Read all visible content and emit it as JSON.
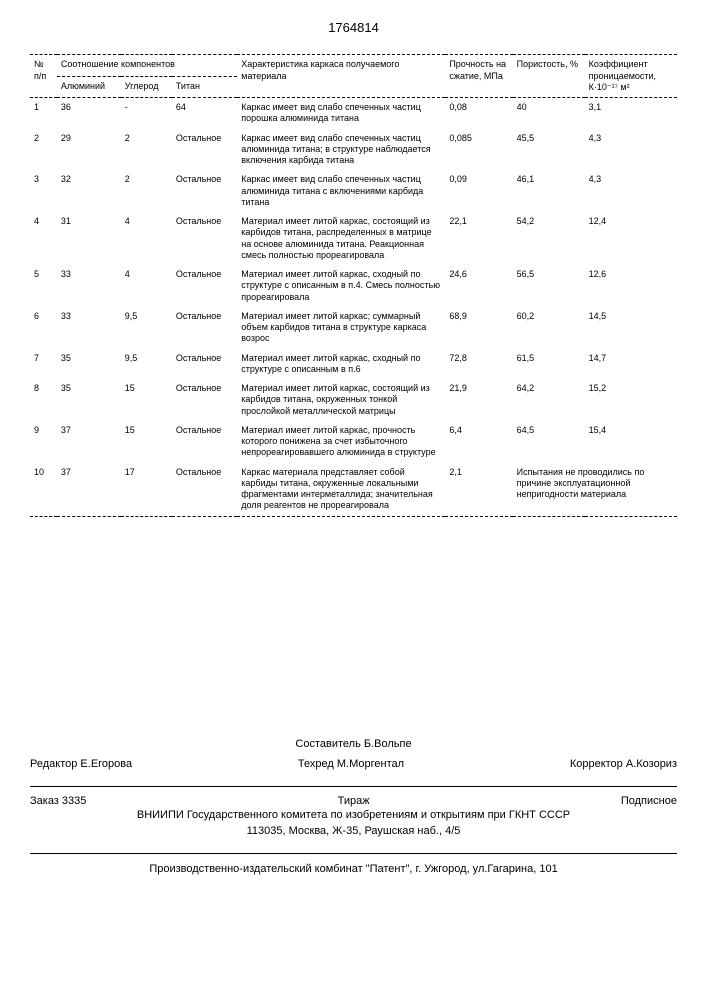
{
  "doc_number": "1764814",
  "headers": {
    "n": "№ п/п",
    "components": "Соотношение компонентов",
    "al": "Алюминий",
    "c": "Углерод",
    "ti": "Титан",
    "char": "Характеристика каркаса получаемого материала",
    "strength": "Прочность на сжатие, МПа",
    "porosity": "Пористость, %",
    "perm": "Коэффициент проницаемости, К·10⁻¹⁷ м²"
  },
  "rows": [
    {
      "n": "1",
      "al": "36",
      "c": "-",
      "ti": "64",
      "char": "Каркас имеет вид слабо спеченных частиц порошка алюминида титана",
      "p": "0,08",
      "por": "40",
      "k": "3,1"
    },
    {
      "n": "2",
      "al": "29",
      "c": "2",
      "ti": "Остальное",
      "char": "Каркас имеет вид слабо спеченных частиц алюминида титана; в структуре наблюдается включения карбида титана",
      "p": "0,085",
      "por": "45,5",
      "k": "4,3"
    },
    {
      "n": "3",
      "al": "32",
      "c": "2",
      "ti": "Остальное",
      "char": "Каркас имеет вид слабо спеченных частиц алюминида титана с включениями карбида титана",
      "p": "0,09",
      "por": "46,1",
      "k": "4,3"
    },
    {
      "n": "4",
      "al": "31",
      "c": "4",
      "ti": "Остальное",
      "char": "Материал имеет литой каркас, состоящий из карбидов титана, распределенных в матрице на основе алюминида титана. Реакционная смесь полностью прореагировала",
      "p": "22,1",
      "por": "54,2",
      "k": "12,4"
    },
    {
      "n": "5",
      "al": "33",
      "c": "4",
      "ti": "Остальное",
      "char": "Материал имеет литой каркас, сходный по структуре с описанным в п.4. Смесь полностью прореагировала",
      "p": "24,6",
      "por": "56,5",
      "k": "12,6"
    },
    {
      "n": "6",
      "al": "33",
      "c": "9,5",
      "ti": "Остальное",
      "char": "Материал имеет литой каркас; суммарный объем карбидов титана в структуре каркаса возрос",
      "p": "68,9",
      "por": "60,2",
      "k": "14,5"
    },
    {
      "n": "7",
      "al": "35",
      "c": "9,5",
      "ti": "Остальное",
      "char": "Материал имеет литой каркас, сходный по структуре с описанным в п.6",
      "p": "72,8",
      "por": "61,5",
      "k": "14,7"
    },
    {
      "n": "8",
      "al": "35",
      "c": "15",
      "ti": "Остальное",
      "char": "Материал имеет литой каркас, состоящий из карбидов титана, окруженных тонкой прослойкой металлической матрицы",
      "p": "21,9",
      "por": "64,2",
      "k": "15,2"
    },
    {
      "n": "9",
      "al": "37",
      "c": "15",
      "ti": "Остальное",
      "char": "Материал имеет литой каркас, прочность которого понижена за счет избыточного непрореагировавшего алюминида в структуре",
      "p": "6,4",
      "por": "64,5",
      "k": "15,4"
    },
    {
      "n": "10",
      "al": "37",
      "c": "17",
      "ti": "Остальное",
      "char": "Каркас материала представляет собой карбиды титана, окруженные локальными фрагментами интерметаллида; значительная доля реагентов не прореагировала",
      "p": "2,1",
      "por": "",
      "k": "Испытания не проводились по причине эксплуатационной непригодности материала"
    }
  ],
  "footer": {
    "composer": "Составитель Б.Вольпе",
    "editor_label": "Редактор",
    "editor": "Е.Егорова",
    "tech_label": "Техред",
    "tech": "М.Моргентал",
    "corr_label": "Корректор",
    "corr": "А.Козориз",
    "order_label": "Заказ",
    "order": "3335",
    "tirazh": "Тираж",
    "subscr": "Подписное",
    "org": "ВНИИПИ Государственного комитета по изобретениям и открытиям при ГКНТ СССР",
    "addr": "113035, Москва, Ж-35, Раушская наб., 4/5",
    "printer": "Производственно-издательский комбинат \"Патент\", г. Ужгород, ул.Гагарина, 101"
  }
}
